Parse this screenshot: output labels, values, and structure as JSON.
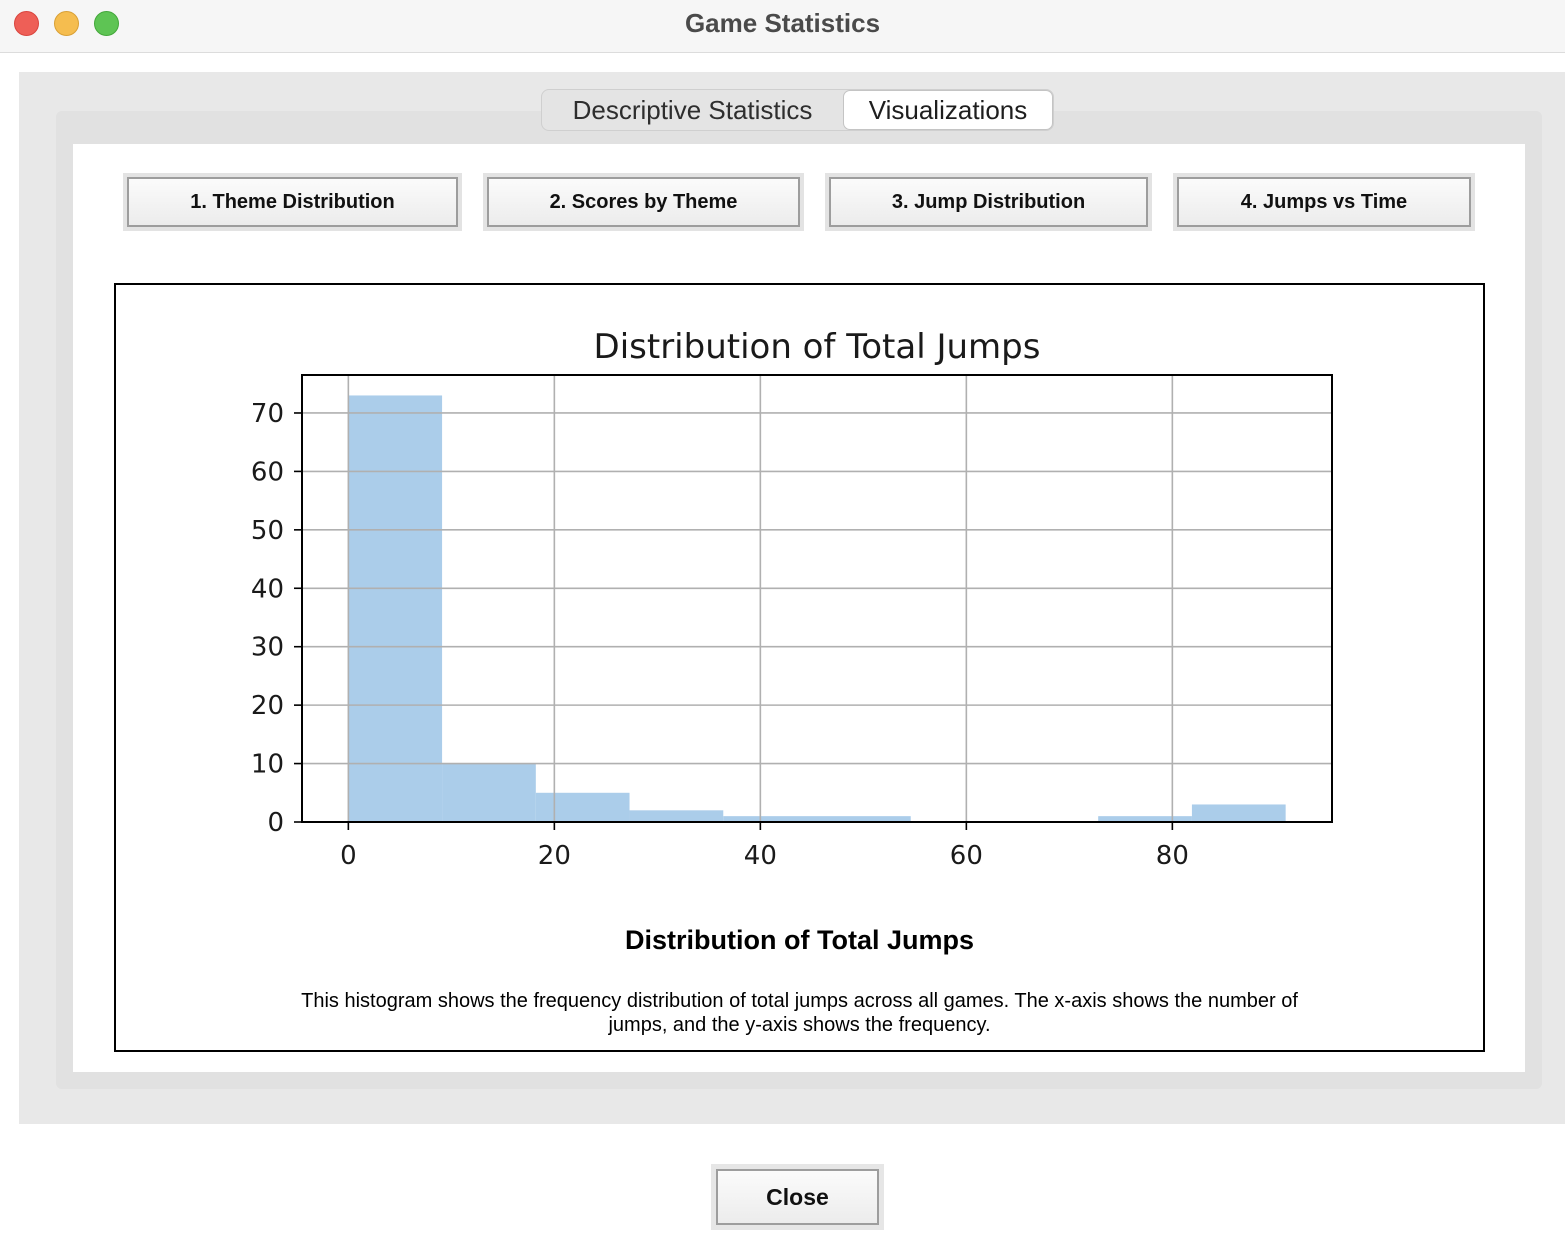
{
  "window": {
    "title": "Game Statistics"
  },
  "tabs": [
    {
      "label": "Descriptive Statistics",
      "selected": false
    },
    {
      "label": "Visualizations",
      "selected": true
    }
  ],
  "viz_buttons": [
    "1. Theme Distribution",
    "2. Scores by Theme",
    "3. Jump Distribution",
    "4. Jumps vs Time"
  ],
  "chart_data": {
    "type": "bar",
    "title": "Distribution of Total Jumps",
    "xlabel": "",
    "ylabel": "",
    "bins": [
      {
        "x0": 0.0,
        "x1": 9.1,
        "value": 73
      },
      {
        "x0": 9.1,
        "x1": 18.2,
        "value": 10
      },
      {
        "x0": 18.2,
        "x1": 27.3,
        "value": 5
      },
      {
        "x0": 27.3,
        "x1": 36.4,
        "value": 2
      },
      {
        "x0": 36.4,
        "x1": 45.5,
        "value": 1
      },
      {
        "x0": 45.5,
        "x1": 54.6,
        "value": 1
      },
      {
        "x0": 54.6,
        "x1": 63.7,
        "value": 0
      },
      {
        "x0": 63.7,
        "x1": 72.8,
        "value": 0
      },
      {
        "x0": 72.8,
        "x1": 81.9,
        "value": 1
      },
      {
        "x0": 81.9,
        "x1": 91.0,
        "value": 3
      }
    ],
    "xlim": [
      -4.5,
      95.5
    ],
    "ylim": [
      0,
      76.5
    ],
    "xticks": [
      0,
      20,
      40,
      60,
      80
    ],
    "yticks": [
      0,
      10,
      20,
      30,
      40,
      50,
      60,
      70
    ],
    "grid": true,
    "bar_color": "#abcdea"
  },
  "caption": {
    "title": "Distribution of Total Jumps",
    "text": "This histogram shows the frequency distribution of total jumps across all games. The x-axis shows the number of jumps, and the y-axis shows the frequency."
  },
  "close_label": "Close"
}
